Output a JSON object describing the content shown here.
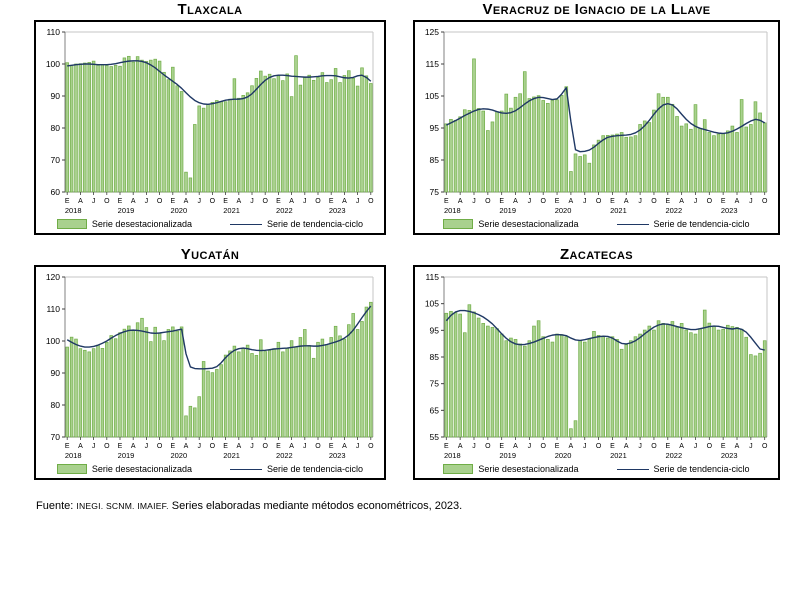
{
  "legend": {
    "bar_label": "Serie desestacionalizada",
    "line_label": "Serie de tendencia-ciclo"
  },
  "colors": {
    "bar_fill": "#A9D18E",
    "bar_border": "#70AD47",
    "trend_line": "#1F3864",
    "axis_dark": "#808080",
    "frame_light": "#C6C6C6",
    "tick": "#404040"
  },
  "footer": {
    "label": "Fuente:",
    "abbr": "INEGI. SCNM. IMAIEF.",
    "text": "Series elaboradas mediante métodos econométricos, 2023."
  },
  "chart_data": [
    {
      "type": "bar",
      "title": "Tlaxcala",
      "ylim": [
        60,
        110
      ],
      "ytick_step": 10,
      "grid": false,
      "legend_position": "bottom",
      "x_start": "Ene 2018",
      "x_end": "Oct 2023",
      "month_tick_letters": [
        "E",
        "A",
        "J",
        "O"
      ],
      "years": [
        "2018",
        "2019",
        "2020",
        "2021",
        "2022",
        "2023"
      ],
      "series": [
        {
          "name": "Serie desestacionalizada",
          "type": "bar",
          "values": [
            100.4,
            99.6,
            100.0,
            100.1,
            100.3,
            100.5,
            100.9,
            99.6,
            99.8,
            99.5,
            99.2,
            99.6,
            99.3,
            101.9,
            102.4,
            100.6,
            102.3,
            101.2,
            100.8,
            101.2,
            101.5,
            100.9,
            97.4,
            95.1,
            99.0,
            93.2,
            91.4,
            66.2,
            64.4,
            81.1,
            86.9,
            86.2,
            87.3,
            88.0,
            88.6,
            88.2,
            88.2,
            89.0,
            95.4,
            89.3,
            90.2,
            91.0,
            93.2,
            95.5,
            97.8,
            96.2,
            96.8,
            95.4,
            96.3,
            94.8,
            96.9,
            89.8,
            102.6,
            93.4,
            95.8,
            96.5,
            94.9,
            95.8,
            97.3,
            94.2,
            95.1,
            98.6,
            94.2,
            96.4,
            97.9,
            95.5,
            93.1,
            98.8,
            96.3,
            93.9
          ]
        },
        {
          "name": "Serie de tendencia-ciclo",
          "type": "line",
          "values": [
            99.4,
            99.6,
            99.8,
            99.9,
            100.0,
            100.0,
            99.9,
            99.8,
            99.8,
            99.8,
            99.9,
            100.1,
            100.4,
            100.7,
            100.9,
            101.0,
            101.0,
            100.8,
            100.4,
            99.7,
            98.8,
            97.7,
            96.6,
            95.6,
            94.6,
            93.6,
            92.4,
            91.0,
            89.7,
            88.6,
            87.9,
            87.5,
            87.4,
            87.6,
            87.9,
            88.3,
            88.7,
            88.9,
            89.0,
            89.0,
            89.2,
            89.7,
            90.7,
            92.1,
            93.6,
            94.9,
            95.8,
            96.3,
            96.5,
            96.5,
            96.4,
            96.2,
            96.1,
            96.0,
            95.9,
            95.9,
            96.0,
            96.1,
            96.3,
            96.4,
            96.4,
            96.3,
            96.0,
            95.7,
            95.6,
            95.8,
            96.3,
            96.5,
            95.8,
            94.6
          ]
        }
      ]
    },
    {
      "type": "bar",
      "title": "Veracruz de Ignacio de la Llave",
      "ylim": [
        75,
        125
      ],
      "ytick_step": 10,
      "grid": false,
      "legend_position": "bottom",
      "x_start": "Ene 2018",
      "x_end": "Oct 2023",
      "month_tick_letters": [
        "E",
        "A",
        "J",
        "O"
      ],
      "years": [
        "2018",
        "2019",
        "2020",
        "2021",
        "2022",
        "2023"
      ],
      "series": [
        {
          "name": "Serie desestacionalizada",
          "type": "bar",
          "values": [
            96.3,
            97.7,
            97.4,
            98.5,
            100.7,
            100.5,
            116.6,
            101.1,
            100.3,
            94.2,
            96.9,
            100.1,
            100.3,
            105.6,
            101.2,
            104.6,
            105.7,
            112.6,
            104.2,
            104.7,
            105.1,
            103.6,
            102.7,
            103.7,
            103.8,
            105.2,
            107.9,
            81.4,
            86.9,
            86.1,
            86.6,
            84.0,
            89.7,
            91.2,
            92.6,
            92.7,
            92.8,
            93.1,
            93.6,
            92.1,
            92.2,
            92.6,
            96.1,
            97.2,
            96.7,
            100.6,
            105.7,
            104.6,
            104.6,
            102.4,
            98.6,
            95.6,
            96.3,
            94.6,
            102.3,
            94.9,
            97.6,
            93.6,
            92.6,
            93.1,
            93.2,
            94.1,
            95.6,
            93.6,
            103.9,
            95.3,
            96.1,
            103.2,
            99.7,
            96.6
          ]
        },
        {
          "name": "Serie de tendencia-ciclo",
          "type": "line",
          "values": [
            95.9,
            96.6,
            97.3,
            98.1,
            98.9,
            99.6,
            100.3,
            100.8,
            101.0,
            100.9,
            100.6,
            100.1,
            99.7,
            99.6,
            99.8,
            100.4,
            101.4,
            102.5,
            103.5,
            104.2,
            104.6,
            104.5,
            104.2,
            103.9,
            104.1,
            105.6,
            107.6,
            97.0,
            88.2,
            87.6,
            87.7,
            88.1,
            89.0,
            90.2,
            91.3,
            92.1,
            92.4,
            92.6,
            92.7,
            92.8,
            93.0,
            93.5,
            94.4,
            95.7,
            97.4,
            99.3,
            101.0,
            102.2,
            102.6,
            102.2,
            101.0,
            99.3,
            97.7,
            96.4,
            95.5,
            94.9,
            94.5,
            94.1,
            93.7,
            93.4,
            93.3,
            93.5,
            94.0,
            94.7,
            95.5,
            96.4,
            97.2,
            97.7,
            97.4,
            96.6
          ]
        }
      ]
    },
    {
      "type": "bar",
      "title": "Yucatán",
      "ylim": [
        70,
        120
      ],
      "ytick_step": 10,
      "grid": false,
      "legend_position": "bottom",
      "x_start": "Ene 2018",
      "x_end": "Oct 2023",
      "month_tick_letters": [
        "E",
        "A",
        "J",
        "O"
      ],
      "years": [
        "2018",
        "2019",
        "2020",
        "2021",
        "2022",
        "2023"
      ],
      "series": [
        {
          "name": "Serie desestacionalizada",
          "type": "bar",
          "values": [
            98.1,
            101.2,
            100.6,
            97.6,
            97.1,
            96.6,
            97.6,
            98.7,
            97.7,
            99.6,
            101.7,
            100.7,
            102.6,
            103.7,
            104.7,
            103.3,
            105.7,
            107.1,
            104.2,
            99.8,
            104.3,
            102.5,
            100.1,
            103.6,
            104.4,
            103.1,
            104.4,
            76.6,
            79.6,
            79.1,
            82.6,
            93.6,
            90.6,
            90.1,
            91.1,
            92.6,
            95.6,
            96.9,
            98.4,
            96.6,
            97.7,
            98.7,
            96.1,
            95.5,
            100.4,
            96.7,
            97.1,
            97.6,
            99.6,
            96.6,
            97.7,
            100.1,
            98.1,
            101.1,
            103.6,
            98.6,
            94.6,
            99.6,
            100.6,
            98.9,
            101.1,
            104.6,
            101.6,
            100.6,
            105.1,
            108.6,
            103.6,
            106.1,
            110.6,
            112.1
          ]
        },
        {
          "name": "Serie de tendencia-ciclo",
          "type": "line",
          "values": [
            100.4,
            99.6,
            98.9,
            98.4,
            98.1,
            98.1,
            98.3,
            98.7,
            99.3,
            100.0,
            100.9,
            101.7,
            102.4,
            102.9,
            103.3,
            103.4,
            103.3,
            103.1,
            102.8,
            102.5,
            102.4,
            102.5,
            102.7,
            102.9,
            103.1,
            103.4,
            103.7,
            96.0,
            91.9,
            91.4,
            91.3,
            91.3,
            91.4,
            91.5,
            92.0,
            93.2,
            94.8,
            96.1,
            97.1,
            97.6,
            97.8,
            97.6,
            97.3,
            97.1,
            97.0,
            97.1,
            97.3,
            97.5,
            97.6,
            97.7,
            97.8,
            98.0,
            98.2,
            98.4,
            98.5,
            98.5,
            98.4,
            98.4,
            98.6,
            98.9,
            99.3,
            99.7,
            100.2,
            100.9,
            101.9,
            103.4,
            105.3,
            107.3,
            109.2,
            110.9
          ]
        }
      ]
    },
    {
      "type": "bar",
      "title": "Zacatecas",
      "ylim": [
        55,
        115
      ],
      "ytick_step": 10,
      "grid": false,
      "legend_position": "bottom",
      "x_start": "Ene 2018",
      "x_end": "Oct 2023",
      "month_tick_letters": [
        "E",
        "A",
        "J",
        "O"
      ],
      "years": [
        "2018",
        "2019",
        "2020",
        "2021",
        "2022",
        "2023"
      ],
      "series": [
        {
          "name": "Serie desestacionalizada",
          "type": "bar",
          "values": [
            101.4,
            102.1,
            101.6,
            101.1,
            94.1,
            104.6,
            101.9,
            99.6,
            97.6,
            96.6,
            96.1,
            95.6,
            93.6,
            91.1,
            92.1,
            91.6,
            89.9,
            89.1,
            91.1,
            96.6,
            98.6,
            92.6,
            91.6,
            90.6,
            93.6,
            93.4,
            92.6,
            58.1,
            61.1,
            91.1,
            90.6,
            91.6,
            94.6,
            93.1,
            92.6,
            92.1,
            92.6,
            91.6,
            87.9,
            89.6,
            91.1,
            92.6,
            93.6,
            95.1,
            96.6,
            95.1,
            98.6,
            97.6,
            97.1,
            98.3,
            96.1,
            97.6,
            95.1,
            94.1,
            93.6,
            95.6,
            102.6,
            97.7,
            96.6,
            95.1,
            95.4,
            96.9,
            96.4,
            96.1,
            95.4,
            92.4,
            85.9,
            85.4,
            86.4,
            91.1
          ]
        },
        {
          "name": "Serie de tendencia-ciclo",
          "type": "line",
          "values": [
            98.6,
            100.6,
            101.9,
            102.4,
            102.4,
            102.1,
            101.6,
            100.9,
            100.0,
            98.8,
            97.4,
            95.6,
            93.7,
            92.0,
            90.7,
            89.9,
            89.6,
            89.7,
            90.1,
            90.6,
            91.3,
            92.0,
            92.7,
            93.2,
            93.4,
            93.3,
            93.0,
            92.1,
            91.4,
            91.2,
            91.5,
            91.9,
            92.3,
            92.6,
            92.8,
            92.7,
            92.1,
            91.0,
            90.1,
            89.9,
            90.3,
            91.1,
            92.3,
            93.7,
            95.0,
            96.2,
            97.0,
            97.4,
            97.3,
            96.9,
            96.4,
            96.0,
            95.6,
            95.3,
            95.3,
            95.6,
            96.0,
            96.4,
            96.6,
            96.5,
            96.1,
            95.7,
            95.5,
            95.8,
            95.4,
            94.3,
            92.4,
            90.2,
            88.0,
            87.6
          ]
        }
      ]
    }
  ]
}
